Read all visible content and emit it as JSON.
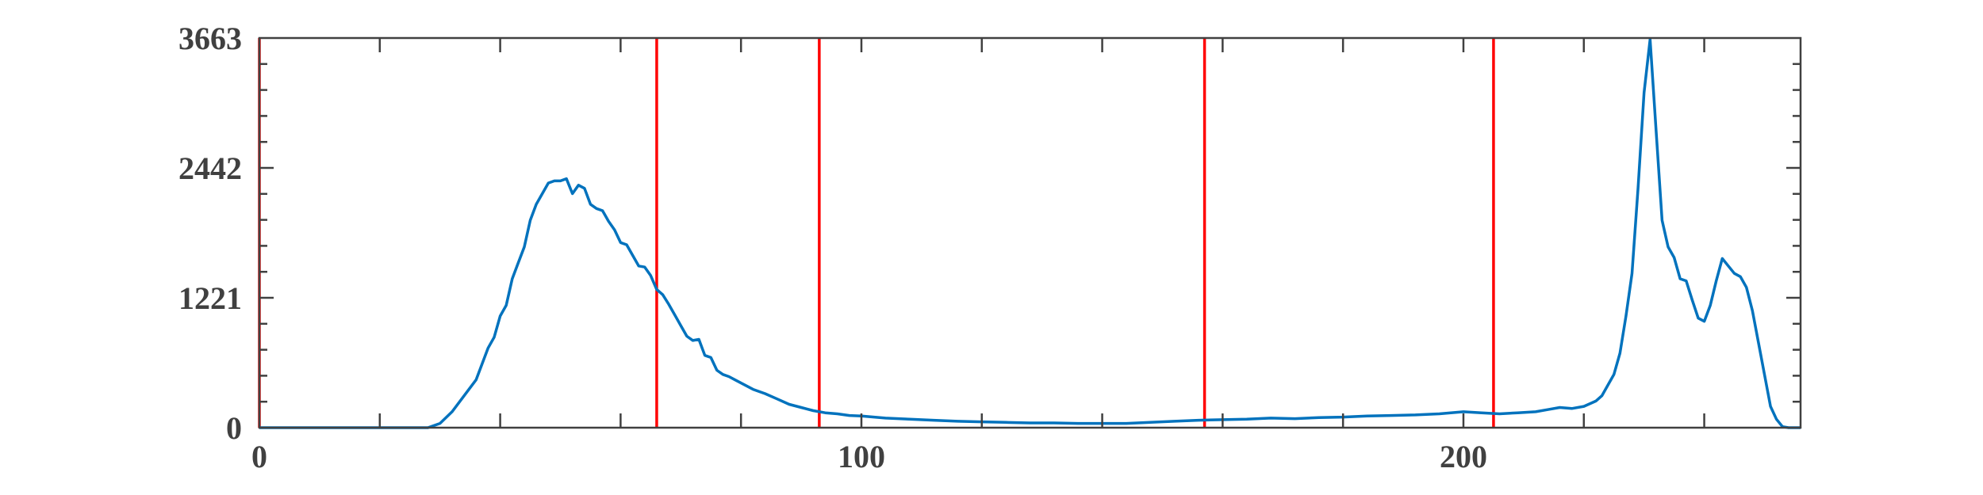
{
  "chart_data": {
    "type": "line",
    "title": "",
    "xlabel": "",
    "ylabel": "",
    "xlim": [
      0,
      256
    ],
    "ylim": [
      0,
      3663
    ],
    "x_ticks": [
      0,
      100,
      200
    ],
    "x_tick_labels": [
      "0",
      "100",
      "200"
    ],
    "y_ticks": [
      0,
      1221,
      2442,
      3663
    ],
    "y_tick_labels": [
      "0",
      "1221",
      "2442",
      "3663"
    ],
    "grid": false,
    "legend": "none",
    "series": [
      {
        "color": "#0072BD",
        "x": [
          0,
          10,
          20,
          28,
          30,
          32,
          34,
          36,
          38,
          39,
          40,
          41,
          42,
          43,
          44,
          45,
          46,
          47,
          48,
          49,
          50,
          51,
          52,
          53,
          54,
          55,
          56,
          57,
          58,
          59,
          60,
          61,
          62,
          63,
          64,
          65,
          66,
          67,
          68,
          69,
          70,
          71,
          72,
          73,
          74,
          75,
          76,
          77,
          78,
          79,
          80,
          82,
          84,
          86,
          88,
          90,
          92,
          94,
          96,
          98,
          100,
          104,
          108,
          112,
          116,
          120,
          124,
          128,
          132,
          136,
          140,
          144,
          148,
          152,
          156,
          160,
          164,
          168,
          172,
          176,
          180,
          184,
          188,
          192,
          196,
          200,
          203,
          206,
          209,
          212,
          214,
          216,
          218,
          220,
          222,
          223,
          224,
          225,
          226,
          227,
          228,
          229,
          230,
          231,
          232,
          233,
          234,
          235,
          236,
          237,
          238,
          239,
          240,
          241,
          242,
          243,
          244,
          245,
          246,
          247,
          248,
          249,
          250,
          251,
          252,
          253,
          254,
          256
        ],
        "y": [
          0,
          0,
          0,
          0,
          40,
          150,
          300,
          450,
          750,
          850,
          1050,
          1150,
          1400,
          1550,
          1700,
          1950,
          2100,
          2200,
          2300,
          2320,
          2320,
          2340,
          2200,
          2280,
          2250,
          2100,
          2060,
          2040,
          1940,
          1860,
          1740,
          1720,
          1620,
          1520,
          1510,
          1430,
          1300,
          1250,
          1160,
          1060,
          960,
          860,
          820,
          830,
          680,
          660,
          540,
          500,
          480,
          450,
          420,
          360,
          320,
          270,
          220,
          190,
          160,
          140,
          130,
          115,
          110,
          90,
          80,
          70,
          60,
          55,
          50,
          45,
          45,
          40,
          40,
          40,
          50,
          60,
          70,
          75,
          80,
          90,
          85,
          95,
          100,
          110,
          115,
          120,
          130,
          150,
          140,
          130,
          140,
          150,
          170,
          190,
          180,
          200,
          250,
          300,
          400,
          500,
          700,
          1050,
          1450,
          2250,
          3150,
          3650,
          2800,
          1950,
          1700,
          1600,
          1400,
          1380,
          1200,
          1030,
          1000,
          1150,
          1380,
          1590,
          1520,
          1450,
          1420,
          1320,
          1100,
          800,
          500,
          200,
          80,
          10,
          0,
          0
        ]
      }
    ],
    "vertical_lines": {
      "color": "#FF0000",
      "x": [
        0,
        66,
        93,
        157,
        205
      ]
    },
    "axis_color": "#404040"
  }
}
